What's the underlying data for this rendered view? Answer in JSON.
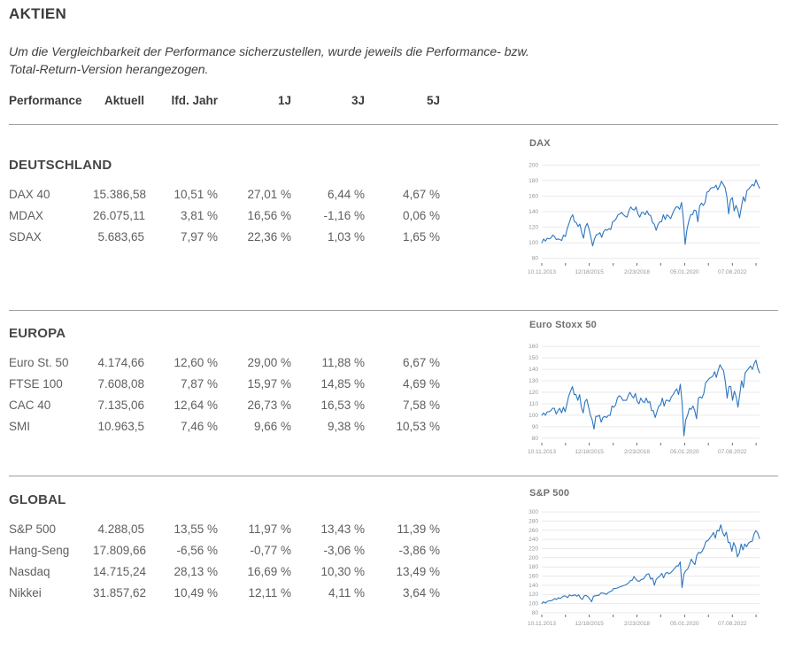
{
  "header": {
    "title": "AKTIEN",
    "note": "Um die Vergleichbarkeit der Performance sicherzustellen, wurde jeweils die Performance- bzw. Total-Return-Version herangezogen."
  },
  "table": {
    "columns": [
      "Performance",
      "Aktuell",
      "lfd. Jahr",
      "1J",
      "3J",
      "5J"
    ],
    "sections": [
      {
        "heading": "DEUTSCHLAND",
        "rows": [
          {
            "cells": [
              "DAX 40",
              "15.386,58",
              "10,51 %",
              "27,01 %",
              "6,44 %",
              "4,67 %"
            ]
          },
          {
            "cells": [
              "MDAX",
              "26.075,11",
              "3,81 %",
              "16,56 %",
              "-1,16 %",
              "0,06 %"
            ]
          },
          {
            "cells": [
              "SDAX",
              "5.683,65",
              "7,97 %",
              "22,36 %",
              "1,03 %",
              "1,65 %"
            ]
          }
        ]
      },
      {
        "heading": "EUROPA",
        "rows": [
          {
            "cells": [
              "Euro St. 50",
              "4.174,66",
              "12,60 %",
              "29,00 %",
              "11,88 %",
              "6,67 %"
            ]
          },
          {
            "cells": [
              "FTSE 100",
              "7.608,08",
              "7,87 %",
              "15,97 %",
              "14,85 %",
              "4,69 %"
            ]
          },
          {
            "cells": [
              "CAC 40",
              "7.135,06",
              "12,64 %",
              "26,73 %",
              "16,53 %",
              "7,58 %"
            ]
          },
          {
            "cells": [
              "SMI",
              "10.963,5",
              "7,46 %",
              "9,66 %",
              "9,38 %",
              "10,53 %"
            ]
          }
        ]
      },
      {
        "heading": "GLOBAL",
        "rows": [
          {
            "cells": [
              "S&P 500",
              "4.288,05",
              "13,55 %",
              "11,97 %",
              "13,43 %",
              "11,39 %"
            ]
          },
          {
            "cells": [
              "Hang-Seng",
              "17.809,66",
              "-6,56 %",
              "-0,77 %",
              "-3,06 %",
              "-3,86 %"
            ]
          },
          {
            "cells": [
              "Nasdaq",
              "14.715,24",
              "28,13 %",
              "16,69 %",
              "10,30 %",
              "13,49 %"
            ]
          },
          {
            "cells": [
              "Nikkei",
              "31.857,62",
              "10,49 %",
              "12,11 %",
              "4,11 %",
              "3,64 %"
            ]
          }
        ]
      }
    ]
  },
  "chart_style": {
    "line_color": "#2e76c0",
    "grid_color": "#e9e9e9",
    "tick_color": "#6f6f6f",
    "label_color": "#94989c"
  },
  "chart_data": [
    {
      "type": "line",
      "title": "DAX",
      "x_labels": [
        "10.11.2013",
        "12/18/2015",
        "2/23/2018",
        "05.01.2020",
        "07.08.2022"
      ],
      "yticks": [
        80,
        100,
        120,
        140,
        160,
        180,
        200
      ],
      "ymin": 74,
      "ymax": 206,
      "h": 142,
      "values": [
        100,
        105,
        102,
        106,
        105,
        106,
        110,
        108,
        104,
        105,
        104,
        103,
        110,
        108,
        118,
        125,
        132,
        136,
        127,
        126,
        121,
        124,
        113,
        106,
        120,
        125,
        118,
        108,
        96,
        105,
        110,
        111,
        113,
        107,
        114,
        117,
        116,
        118,
        117,
        127,
        128,
        131,
        136,
        137,
        139,
        136,
        134,
        133,
        141,
        146,
        143,
        142,
        146,
        137,
        133,
        139,
        139,
        136,
        141,
        136,
        135,
        126,
        124,
        116,
        123,
        127,
        127,
        136,
        130,
        136,
        134,
        131,
        137,
        142,
        146,
        146,
        143,
        152,
        131,
        98,
        117,
        128,
        136,
        136,
        142,
        141,
        127,
        147,
        151,
        148,
        152,
        165,
        166,
        170,
        171,
        171,
        174,
        168,
        173,
        179,
        175,
        171,
        159,
        137,
        155,
        158,
        141,
        148,
        142,
        132,
        146,
        159,
        153,
        167,
        169,
        172,
        175,
        173,
        181,
        175,
        170
      ]
    },
    {
      "type": "line",
      "title": "Euro Stoxx 50",
      "x_labels": [
        "10.11.2013",
        "12/18/2015",
        "2/23/2018",
        "05.01.2020",
        "07.08.2022"
      ],
      "yticks": [
        80,
        90,
        100,
        110,
        120,
        130,
        140,
        150,
        160
      ],
      "ymin": 76,
      "ymax": 164,
      "h": 140,
      "values": [
        100,
        102,
        100,
        103,
        103,
        104,
        106,
        106,
        101,
        104,
        106,
        102,
        107,
        103,
        110,
        117,
        121,
        125,
        118,
        118,
        113,
        118,
        107,
        102,
        112,
        114,
        107,
        100,
        96,
        88,
        99,
        99,
        100,
        94,
        98,
        99,
        98,
        100,
        100,
        108,
        107,
        109,
        115,
        117,
        116,
        113,
        113,
        113,
        117,
        120,
        117,
        115,
        119,
        112,
        110,
        115,
        112,
        111,
        115,
        111,
        112,
        104,
        104,
        98,
        103,
        108,
        109,
        115,
        108,
        113,
        113,
        112,
        116,
        118,
        121,
        123,
        118,
        127,
        110,
        82,
        96,
        100,
        106,
        105,
        108,
        104,
        97,
        115,
        116,
        115,
        119,
        128,
        130,
        132,
        133,
        134,
        138,
        133,
        139,
        144,
        141,
        139,
        129,
        115,
        125,
        125,
        113,
        121,
        116,
        107,
        118,
        130,
        124,
        137,
        139,
        141,
        143,
        140,
        145,
        148,
        141,
        137
      ]
    },
    {
      "type": "line",
      "title": "S&P 500",
      "x_labels": [
        "10.11.2013",
        "12/18/2015",
        "2/23/2018",
        "05.01.2020",
        "07.08.2022"
      ],
      "yticks": [
        80,
        100,
        120,
        140,
        160,
        180,
        200,
        220,
        240,
        260,
        280,
        300
      ],
      "ymin": 76,
      "ymax": 304,
      "h": 144,
      "values": [
        100,
        104,
        101,
        105,
        106,
        106,
        108,
        111,
        109,
        113,
        111,
        114,
        117,
        116,
        113,
        119,
        117,
        118,
        119,
        116,
        119,
        112,
        109,
        117,
        118,
        115,
        110,
        104,
        116,
        117,
        118,
        118,
        123,
        123,
        122,
        120,
        124,
        126,
        128,
        133,
        133,
        134,
        136,
        137,
        139,
        140,
        142,
        145,
        150,
        151,
        159,
        153,
        149,
        149,
        153,
        153,
        159,
        164,
        165,
        153,
        156,
        140,
        153,
        157,
        160,
        166,
        156,
        166,
        168,
        165,
        168,
        172,
        177,
        182,
        182,
        191,
        135,
        164,
        172,
        175,
        185,
        197,
        190,
        185,
        205,
        212,
        210,
        215,
        224,
        236,
        237,
        243,
        248,
        255,
        243,
        260,
        258,
        272,
        255,
        247,
        256,
        233,
        233,
        214,
        233,
        223,
        202,
        210,
        230,
        217,
        230,
        224,
        232,
        235,
        236,
        251,
        259,
        254,
        242
      ]
    }
  ]
}
